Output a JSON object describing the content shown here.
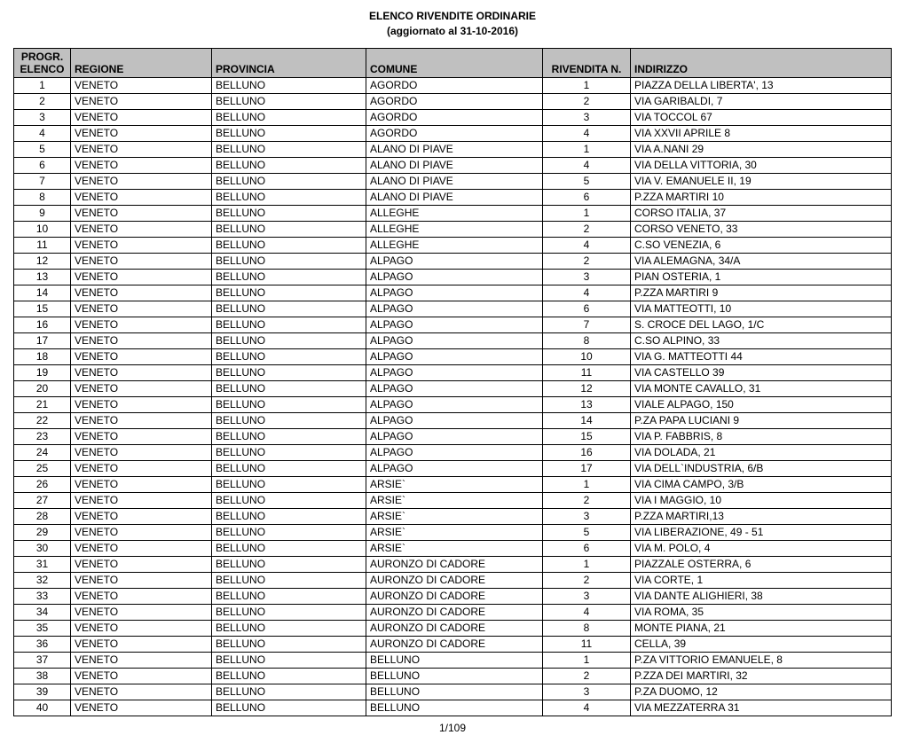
{
  "title": "ELENCO RIVENDITE ORDINARIE",
  "subtitle": "(aggiornato al 31-10-2016)",
  "footer": "1/109",
  "columns": {
    "progr_line1": "PROGR.",
    "progr_line2": "ELENCO",
    "regione": "REGIONE",
    "provincia": "PROVINCIA",
    "comune": "COMUNE",
    "rivendita": "RIVENDITA N.",
    "indirizzo": "INDIRIZZO"
  },
  "rows": [
    {
      "n": "1",
      "regione": "VENETO",
      "provincia": "BELLUNO",
      "comune": "AGORDO",
      "riv": "1",
      "ind": "PIAZZA DELLA LIBERTA',  13"
    },
    {
      "n": "2",
      "regione": "VENETO",
      "provincia": "BELLUNO",
      "comune": "AGORDO",
      "riv": "2",
      "ind": "VIA GARIBALDI,  7"
    },
    {
      "n": "3",
      "regione": "VENETO",
      "provincia": "BELLUNO",
      "comune": "AGORDO",
      "riv": "3",
      "ind": "VIA TOCCOL 67"
    },
    {
      "n": "4",
      "regione": "VENETO",
      "provincia": "BELLUNO",
      "comune": "AGORDO",
      "riv": "4",
      "ind": "VIA XXVII APRILE 8"
    },
    {
      "n": "5",
      "regione": "VENETO",
      "provincia": "BELLUNO",
      "comune": "ALANO DI PIAVE",
      "riv": "1",
      "ind": "VIA A.NANI 29"
    },
    {
      "n": "6",
      "regione": "VENETO",
      "provincia": "BELLUNO",
      "comune": "ALANO DI PIAVE",
      "riv": "4",
      "ind": "VIA DELLA VITTORIA,  30"
    },
    {
      "n": "7",
      "regione": "VENETO",
      "provincia": "BELLUNO",
      "comune": "ALANO DI PIAVE",
      "riv": "5",
      "ind": "VIA V. EMANUELE II, 19"
    },
    {
      "n": "8",
      "regione": "VENETO",
      "provincia": "BELLUNO",
      "comune": "ALANO DI PIAVE",
      "riv": "6",
      "ind": "P.ZZA MARTIRI 10"
    },
    {
      "n": "9",
      "regione": "VENETO",
      "provincia": "BELLUNO",
      "comune": "ALLEGHE",
      "riv": "1",
      "ind": "CORSO ITALIA, 37"
    },
    {
      "n": "10",
      "regione": "VENETO",
      "provincia": "BELLUNO",
      "comune": "ALLEGHE",
      "riv": "2",
      "ind": "CORSO  VENETO,  33"
    },
    {
      "n": "11",
      "regione": "VENETO",
      "provincia": "BELLUNO",
      "comune": "ALLEGHE",
      "riv": "4",
      "ind": "C.SO VENEZIA,  6"
    },
    {
      "n": "12",
      "regione": "VENETO",
      "provincia": "BELLUNO",
      "comune": "ALPAGO",
      "riv": "2",
      "ind": "VIA ALEMAGNA,  34/A"
    },
    {
      "n": "13",
      "regione": "VENETO",
      "provincia": "BELLUNO",
      "comune": "ALPAGO",
      "riv": "3",
      "ind": "PIAN OSTERIA, 1"
    },
    {
      "n": "14",
      "regione": "VENETO",
      "provincia": "BELLUNO",
      "comune": "ALPAGO",
      "riv": "4",
      "ind": "P.ZZA MARTIRI   9"
    },
    {
      "n": "15",
      "regione": "VENETO",
      "provincia": "BELLUNO",
      "comune": "ALPAGO",
      "riv": "6",
      "ind": "VIA MATTEOTTI, 10"
    },
    {
      "n": "16",
      "regione": "VENETO",
      "provincia": "BELLUNO",
      "comune": "ALPAGO",
      "riv": "7",
      "ind": "S. CROCE DEL LAGO,  1/C"
    },
    {
      "n": "17",
      "regione": "VENETO",
      "provincia": "BELLUNO",
      "comune": "ALPAGO",
      "riv": "8",
      "ind": "C.SO ALPINO,  33"
    },
    {
      "n": "18",
      "regione": "VENETO",
      "provincia": "BELLUNO",
      "comune": "ALPAGO",
      "riv": "10",
      "ind": "VIA G. MATTEOTTI 44"
    },
    {
      "n": "19",
      "regione": "VENETO",
      "provincia": "BELLUNO",
      "comune": "ALPAGO",
      "riv": "11",
      "ind": "VIA CASTELLO 39"
    },
    {
      "n": "20",
      "regione": "VENETO",
      "provincia": "BELLUNO",
      "comune": "ALPAGO",
      "riv": "12",
      "ind": "VIA MONTE CAVALLO, 31"
    },
    {
      "n": "21",
      "regione": "VENETO",
      "provincia": "BELLUNO",
      "comune": "ALPAGO",
      "riv": "13",
      "ind": "VIALE ALPAGO,  150"
    },
    {
      "n": "22",
      "regione": "VENETO",
      "provincia": "BELLUNO",
      "comune": "ALPAGO",
      "riv": "14",
      "ind": "P.ZA PAPA LUCIANI 9"
    },
    {
      "n": "23",
      "regione": "VENETO",
      "provincia": "BELLUNO",
      "comune": "ALPAGO",
      "riv": "15",
      "ind": "VIA P. FABBRIS, 8"
    },
    {
      "n": "24",
      "regione": "VENETO",
      "provincia": "BELLUNO",
      "comune": "ALPAGO",
      "riv": "16",
      "ind": "VIA DOLADA,  21"
    },
    {
      "n": "25",
      "regione": "VENETO",
      "provincia": "BELLUNO",
      "comune": "ALPAGO",
      "riv": "17",
      "ind": "VIA DELL`INDUSTRIA, 6/B"
    },
    {
      "n": "26",
      "regione": "VENETO",
      "provincia": "BELLUNO",
      "comune": "ARSIE`",
      "riv": "1",
      "ind": "VIA CIMA CAMPO, 3/B"
    },
    {
      "n": "27",
      "regione": "VENETO",
      "provincia": "BELLUNO",
      "comune": "ARSIE`",
      "riv": "2",
      "ind": "VIA I MAGGIO, 10"
    },
    {
      "n": "28",
      "regione": "VENETO",
      "provincia": "BELLUNO",
      "comune": "ARSIE`",
      "riv": "3",
      "ind": "P.ZZA MARTIRI,13"
    },
    {
      "n": "29",
      "regione": "VENETO",
      "provincia": "BELLUNO",
      "comune": "ARSIE`",
      "riv": "5",
      "ind": "VIA LIBERAZIONE,  49 - 51"
    },
    {
      "n": "30",
      "regione": "VENETO",
      "provincia": "BELLUNO",
      "comune": "ARSIE`",
      "riv": "6",
      "ind": "VIA M. POLO, 4"
    },
    {
      "n": "31",
      "regione": "VENETO",
      "provincia": "BELLUNO",
      "comune": "AURONZO DI CADORE",
      "riv": "1",
      "ind": "PIAZZALE OSTERRA, 6"
    },
    {
      "n": "32",
      "regione": "VENETO",
      "provincia": "BELLUNO",
      "comune": "AURONZO DI CADORE",
      "riv": "2",
      "ind": "VIA CORTE,  1"
    },
    {
      "n": "33",
      "regione": "VENETO",
      "provincia": "BELLUNO",
      "comune": "AURONZO DI CADORE",
      "riv": "3",
      "ind": "VIA DANTE ALIGHIERI,  38"
    },
    {
      "n": "34",
      "regione": "VENETO",
      "provincia": "BELLUNO",
      "comune": "AURONZO DI CADORE",
      "riv": "4",
      "ind": "VIA ROMA, 35"
    },
    {
      "n": "35",
      "regione": "VENETO",
      "provincia": "BELLUNO",
      "comune": "AURONZO DI CADORE",
      "riv": "8",
      "ind": "MONTE PIANA, 21"
    },
    {
      "n": "36",
      "regione": "VENETO",
      "provincia": "BELLUNO",
      "comune": "AURONZO DI CADORE",
      "riv": "11",
      "ind": "CELLA,  39"
    },
    {
      "n": "37",
      "regione": "VENETO",
      "provincia": "BELLUNO",
      "comune": "BELLUNO",
      "riv": "1",
      "ind": "P.ZA VITTORIO EMANUELE, 8"
    },
    {
      "n": "38",
      "regione": "VENETO",
      "provincia": "BELLUNO",
      "comune": "BELLUNO",
      "riv": "2",
      "ind": "P.ZZA DEI MARTIRI, 32"
    },
    {
      "n": "39",
      "regione": "VENETO",
      "provincia": "BELLUNO",
      "comune": "BELLUNO",
      "riv": "3",
      "ind": "P.ZA DUOMO, 12"
    },
    {
      "n": "40",
      "regione": "VENETO",
      "provincia": "BELLUNO",
      "comune": "BELLUNO",
      "riv": "4",
      "ind": "VIA MEZZATERRA 31"
    }
  ]
}
